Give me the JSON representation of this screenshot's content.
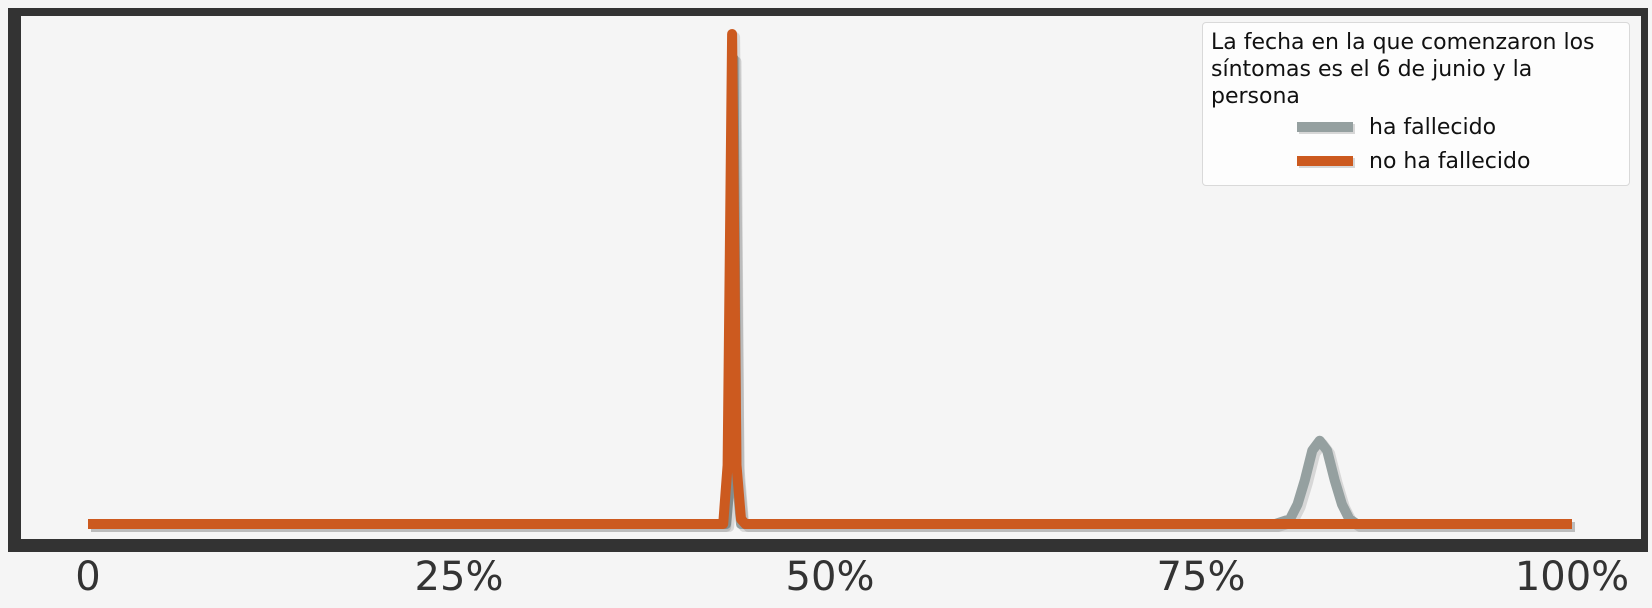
{
  "chart_data": {
    "type": "line",
    "title": "",
    "xlabel": "",
    "ylabel": "",
    "xlim": [
      0,
      100
    ],
    "ylim": [
      0,
      1.0
    ],
    "x_ticks": [
      {
        "value": 0,
        "label": "0"
      },
      {
        "value": 25,
        "label": "25%"
      },
      {
        "value": 50,
        "label": "50%"
      },
      {
        "value": 75,
        "label": "75%"
      },
      {
        "value": 100,
        "label": "100%"
      }
    ],
    "grid": false,
    "legend": {
      "placement": "top-right",
      "title": "La fecha en la que comenzaron los\nsíntomas es el 6 de junio y la\npersona"
    },
    "series": [
      {
        "name": "ha fallecido",
        "color": "#95a0a0",
        "x": [
          0,
          10,
          20,
          30,
          40,
          43,
          43.3,
          43.5,
          43.7,
          44,
          44.5,
          50,
          60,
          70,
          80,
          81,
          81.5,
          82,
          82.5,
          83,
          83.5,
          84,
          84.5,
          85,
          85.5,
          86,
          90,
          100
        ],
        "y": [
          0,
          0,
          0,
          0,
          0,
          0,
          0.1,
          0.95,
          0.1,
          0,
          0,
          0,
          0,
          0,
          0,
          0.01,
          0.04,
          0.09,
          0.15,
          0.17,
          0.15,
          0.09,
          0.04,
          0.01,
          0,
          0,
          0,
          0
        ]
      },
      {
        "name": "no ha fallecido",
        "color": "#cc5a1f",
        "x": [
          0,
          10,
          20,
          30,
          40,
          42.8,
          43.1,
          43.4,
          43.7,
          44,
          44.3,
          50,
          60,
          70,
          80,
          90,
          100
        ],
        "y": [
          0,
          0,
          0,
          0,
          0,
          0,
          0.12,
          1.0,
          0.12,
          0.01,
          0,
          0,
          0,
          0,
          0,
          0,
          0
        ]
      }
    ]
  }
}
